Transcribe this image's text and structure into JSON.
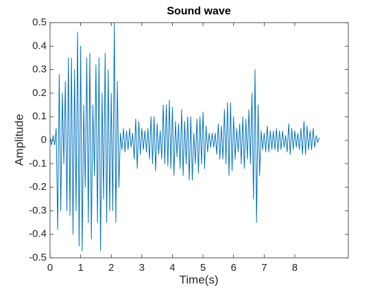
{
  "chart_data": {
    "type": "line",
    "title": "Sound wave",
    "x_label": "Time(s)",
    "y_label": "Amplitude",
    "color": "#0072bd",
    "xlim": [
      0,
      9.75
    ],
    "ylim": [
      -0.5,
      0.5
    ],
    "xticks": [
      0,
      1,
      2,
      3,
      4,
      5,
      6,
      7,
      8
    ],
    "yticks": [
      -0.5,
      -0.4,
      -0.3,
      -0.2,
      -0.1,
      0,
      0.1,
      0.2,
      0.3,
      0.4,
      0.5
    ],
    "x": [
      0,
      0.05,
      0.1,
      0.15,
      0.2,
      0.25,
      0.3,
      0.35,
      0.4,
      0.45,
      0.5,
      0.55,
      0.6,
      0.65,
      0.7,
      0.75,
      0.8,
      0.85,
      0.9,
      0.95,
      1,
      1.05,
      1.1,
      1.15,
      1.2,
      1.25,
      1.3,
      1.35,
      1.4,
      1.45,
      1.5,
      1.55,
      1.6,
      1.65,
      1.7,
      1.75,
      1.8,
      1.85,
      1.9,
      1.95,
      2,
      2.05,
      2.1,
      2.15,
      2.2,
      2.25,
      2.3,
      2.35,
      2.4,
      2.45,
      2.5,
      2.55,
      2.6,
      2.65,
      2.7,
      2.75,
      2.8,
      2.85,
      2.9,
      2.95,
      3,
      3.05,
      3.1,
      3.15,
      3.2,
      3.25,
      3.3,
      3.35,
      3.4,
      3.45,
      3.5,
      3.55,
      3.6,
      3.65,
      3.7,
      3.75,
      3.8,
      3.85,
      3.9,
      3.95,
      4,
      4.05,
      4.1,
      4.15,
      4.2,
      4.25,
      4.3,
      4.35,
      4.4,
      4.45,
      4.5,
      4.55,
      4.6,
      4.65,
      4.7,
      4.75,
      4.8,
      4.85,
      4.9,
      4.95,
      5,
      5.05,
      5.1,
      5.15,
      5.2,
      5.25,
      5.3,
      5.35,
      5.4,
      5.45,
      5.5,
      5.55,
      5.6,
      5.65,
      5.7,
      5.75,
      5.8,
      5.85,
      5.9,
      5.95,
      6,
      6.05,
      6.1,
      6.15,
      6.2,
      6.25,
      6.3,
      6.35,
      6.4,
      6.45,
      6.5,
      6.55,
      6.6,
      6.65,
      6.7,
      6.75,
      6.8,
      6.85,
      6.9,
      6.95,
      7,
      7.05,
      7.1,
      7.15,
      7.2,
      7.25,
      7.3,
      7.35,
      7.4,
      7.45,
      7.5,
      7.55,
      7.6,
      7.65,
      7.7,
      7.75,
      7.8,
      7.85,
      7.9,
      7.95,
      8,
      8.05,
      8.1,
      8.15,
      8.2,
      8.25,
      8.3,
      8.35,
      8.4,
      8.45,
      8.5,
      8.55,
      8.6,
      8.65,
      8.7,
      8.75,
      8.8
    ],
    "values": [
      0.01,
      -0.02,
      0.02,
      -0.02,
      0.05,
      -0.38,
      0.28,
      -0.3,
      0.2,
      -0.1,
      0.25,
      -0.3,
      0.35,
      -0.32,
      0.35,
      -0.4,
      0.3,
      -0.3,
      0.46,
      -0.45,
      0.4,
      -0.47,
      0.15,
      -0.2,
      0.35,
      -0.35,
      0.37,
      -0.42,
      0.15,
      -0.15,
      0.32,
      -0.35,
      0.35,
      -0.47,
      0.2,
      -0.25,
      0.37,
      -0.35,
      0.3,
      -0.3,
      0.2,
      -0.3,
      0.5,
      -0.35,
      0.25,
      -0.2,
      0.03,
      -0.04,
      0.05,
      -0.05,
      0.04,
      -0.04,
      0.05,
      -0.03,
      0.03,
      -0.08,
      0.09,
      -0.12,
      0.08,
      -0.06,
      0.05,
      -0.04,
      0.04,
      -0.05,
      0.05,
      -0.08,
      0.1,
      -0.1,
      0.1,
      -0.13,
      0.07,
      -0.06,
      0.04,
      -0.08,
      0.15,
      -0.1,
      0.15,
      -0.11,
      0.17,
      -0.12,
      0.14,
      -0.15,
      0.08,
      -0.07,
      0.07,
      -0.12,
      0.13,
      -0.15,
      0.08,
      -0.1,
      0.1,
      -0.17,
      0.1,
      -0.17,
      0.03,
      -0.1,
      0.09,
      -0.14,
      0.1,
      -0.1,
      0.12,
      -0.12,
      0.06,
      -0.05,
      0.03,
      -0.03,
      0.03,
      -0.03,
      0.03,
      -0.06,
      0.07,
      -0.08,
      0.06,
      -0.08,
      0.13,
      -0.1,
      0.16,
      -0.15,
      0.16,
      -0.13,
      0.1,
      -0.08,
      0.05,
      -0.05,
      0.07,
      -0.1,
      0.1,
      -0.12,
      0.09,
      -0.08,
      0.13,
      -0.1,
      0.2,
      -0.25,
      0.3,
      -0.35,
      0.15,
      -0.15,
      0.04,
      -0.04,
      0.03,
      -0.05,
      0.06,
      -0.05,
      0.04,
      -0.04,
      0.04,
      -0.04,
      0.05,
      -0.05,
      0.04,
      -0.04,
      0.04,
      -0.03,
      0.02,
      -0.05,
      0.07,
      -0.06,
      0.05,
      -0.04,
      0.04,
      -0.03,
      0.03,
      -0.04,
      0.05,
      -0.06,
      0.08,
      -0.06,
      0.06,
      -0.04,
      0.04,
      -0.04,
      0.05,
      -0.03,
      0.02,
      -0.01,
      0.01
    ]
  }
}
